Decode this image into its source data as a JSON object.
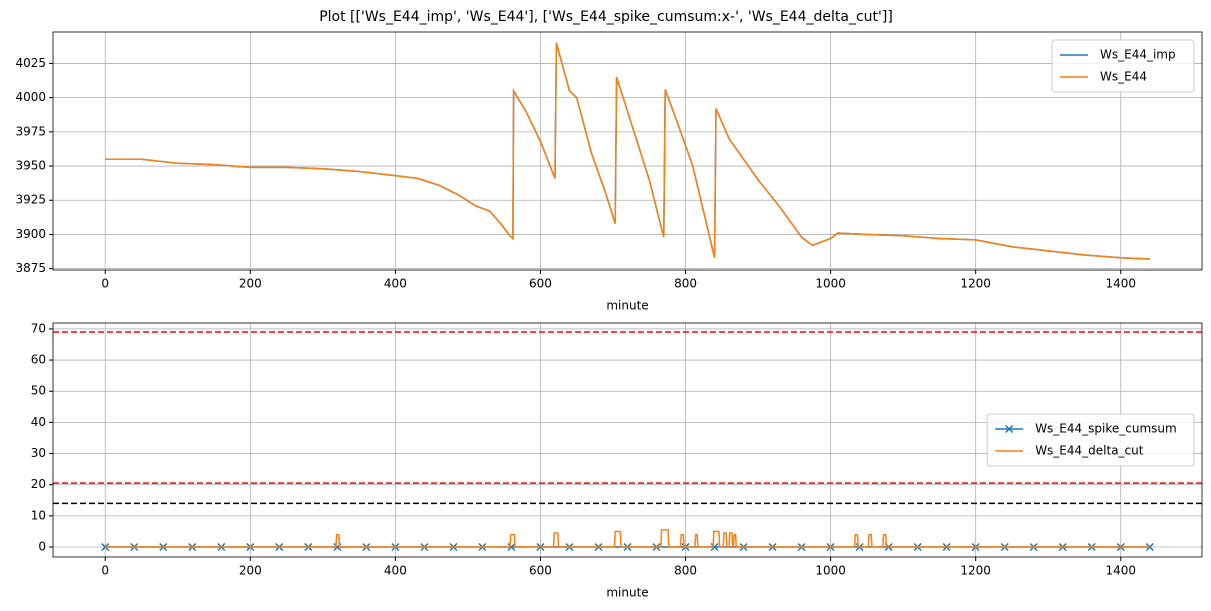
{
  "title": "Plot [['Ws_E44_imp', 'Ws_E44'], ['Ws_E44_spike_cumsum:x-', 'Ws_E44_delta_cut']]",
  "chart_data": [
    {
      "type": "line",
      "xlabel": "minute",
      "xlim": [
        -72,
        1512
      ],
      "ylim": [
        3874,
        4048
      ],
      "xticks": [
        0,
        200,
        400,
        600,
        800,
        1000,
        1200,
        1400
      ],
      "yticks": [
        3875,
        3900,
        3925,
        3950,
        3975,
        4000,
        4025
      ],
      "grid": true,
      "legend": "upper right",
      "series": [
        {
          "name": "Ws_E44_imp",
          "color": "#1f77b4",
          "x": [
            0,
            20,
            50,
            100,
            150,
            200,
            250,
            300,
            350,
            400,
            430,
            460,
            490,
            510,
            530,
            545,
            558,
            562,
            563,
            580,
            600,
            620,
            622,
            640,
            650,
            670,
            690,
            703,
            705,
            720,
            750,
            770,
            772,
            790,
            810,
            840,
            842,
            860,
            880,
            900,
            930,
            960,
            975,
            1000,
            1010,
            1050,
            1100,
            1150,
            1200,
            1250,
            1300,
            1350,
            1400,
            1440
          ],
          "values": [
            3955,
            3955,
            3955,
            3952,
            3951,
            3949,
            3949,
            3948,
            3946,
            3943,
            3941,
            3936,
            3928,
            3921,
            3917,
            3908,
            3899,
            3897,
            4005,
            3990,
            3968,
            3941,
            4040,
            4005,
            4000,
            3960,
            3930,
            3908,
            4015,
            3990,
            3940,
            3898,
            4006,
            3980,
            3950,
            3883,
            3992,
            3970,
            3955,
            3940,
            3920,
            3898,
            3892,
            3897,
            3901,
            3900,
            3899,
            3897,
            3896,
            3891,
            3888,
            3885,
            3883,
            3882
          ]
        },
        {
          "name": "Ws_E44",
          "color": "#ff7f0e",
          "x": [
            0,
            20,
            50,
            100,
            150,
            200,
            250,
            300,
            350,
            400,
            430,
            460,
            490,
            510,
            530,
            545,
            558,
            562,
            563,
            580,
            600,
            620,
            622,
            640,
            650,
            670,
            690,
            703,
            705,
            720,
            750,
            770,
            772,
            790,
            810,
            840,
            842,
            860,
            880,
            900,
            930,
            960,
            975,
            1000,
            1010,
            1050,
            1100,
            1150,
            1200,
            1250,
            1300,
            1350,
            1400,
            1440
          ],
          "values": [
            3955,
            3955,
            3955,
            3952,
            3951,
            3949,
            3949,
            3948,
            3946,
            3943,
            3941,
            3936,
            3928,
            3921,
            3917,
            3908,
            3899,
            3897,
            4005,
            3990,
            3968,
            3941,
            4040,
            4005,
            4000,
            3960,
            3930,
            3908,
            4015,
            3990,
            3940,
            3898,
            4006,
            3980,
            3950,
            3883,
            3992,
            3970,
            3955,
            3940,
            3920,
            3898,
            3892,
            3897,
            3901,
            3900,
            3899,
            3897,
            3896,
            3891,
            3888,
            3885,
            3883,
            3882
          ]
        }
      ]
    },
    {
      "type": "line",
      "xlabel": "minute",
      "xlim": [
        -72,
        1512
      ],
      "ylim": [
        -3.2,
        71.9
      ],
      "xticks": [
        0,
        200,
        400,
        600,
        800,
        1000,
        1200,
        1400
      ],
      "yticks": [
        0,
        10,
        20,
        30,
        40,
        50,
        60,
        70
      ],
      "grid": true,
      "legend": "center right",
      "hlines": [
        {
          "value": 69,
          "color": "#ff0000"
        },
        {
          "value": 20.5,
          "color": "#ff0000"
        },
        {
          "value": 14,
          "color": "#000000"
        }
      ],
      "series": [
        {
          "name": "Ws_E44_spike_cumsum",
          "color": "#1f77b4",
          "marker": "x",
          "x": [
            0,
            40,
            80,
            120,
            160,
            200,
            240,
            280,
            320,
            360,
            400,
            440,
            480,
            520,
            560,
            600,
            640,
            680,
            720,
            760,
            800,
            840,
            880,
            920,
            960,
            1000,
            1040,
            1080,
            1120,
            1160,
            1200,
            1240,
            1280,
            1320,
            1360,
            1400,
            1440
          ],
          "values": [
            0,
            0,
            0,
            0,
            0,
            0,
            0,
            0,
            0,
            0,
            0,
            0,
            0,
            0,
            0,
            0,
            0,
            0,
            0,
            0,
            0,
            0,
            0,
            0,
            0,
            0,
            0,
            0,
            0,
            0,
            0,
            0,
            0,
            0,
            0,
            0,
            0
          ]
        },
        {
          "name": "Ws_E44_delta_cut",
          "color": "#ff7f0e",
          "x": [
            0,
            318,
            319,
            322,
            323,
            558,
            559,
            564,
            565,
            618,
            619,
            624,
            625,
            702,
            703,
            710,
            711,
            766,
            767,
            776,
            777,
            793,
            794,
            797,
            798,
            813,
            814,
            816,
            817,
            838,
            839,
            846,
            847,
            852,
            853,
            856,
            857,
            860,
            861,
            864,
            865,
            866,
            867,
            869,
            870,
            1033,
            1034,
            1037,
            1038,
            1052,
            1053,
            1056,
            1057,
            1072,
            1073,
            1076,
            1077,
            1440
          ],
          "values": [
            0,
            0,
            4,
            4,
            0,
            0,
            4,
            4,
            0,
            0,
            4.5,
            4.5,
            0,
            0,
            5,
            5,
            0,
            0,
            5.5,
            5.5,
            0,
            0,
            4,
            4,
            0,
            0,
            4,
            4,
            0,
            0,
            5,
            5,
            0,
            0,
            4.5,
            4.5,
            0,
            0,
            4.5,
            4.5,
            0,
            0,
            4,
            4,
            0,
            0,
            4,
            4,
            0,
            0,
            4,
            4,
            0,
            0,
            4,
            4,
            0,
            0
          ]
        }
      ]
    }
  ]
}
